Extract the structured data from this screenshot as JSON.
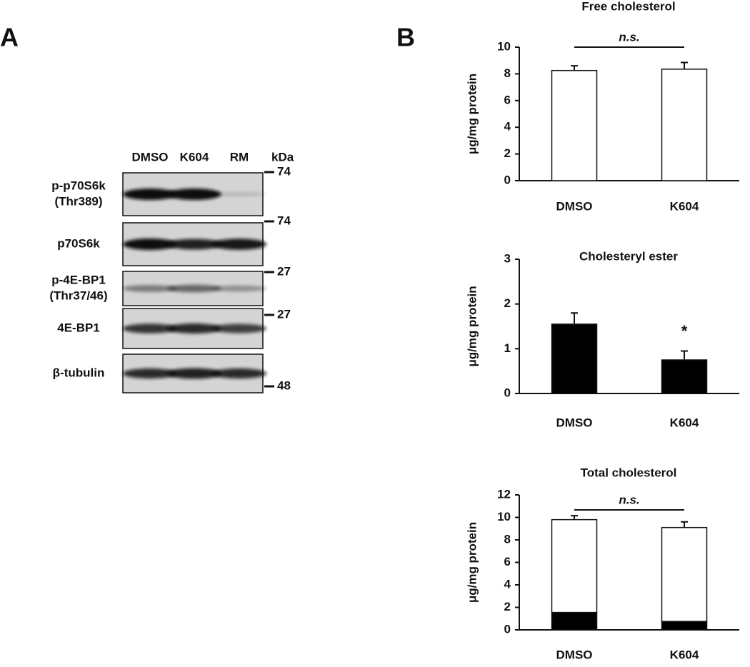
{
  "panel_labels": [
    "A",
    "B"
  ],
  "blot": {
    "lanes": [
      "DMSO",
      "K604",
      "RM"
    ],
    "unit": "kDa",
    "rows": [
      {
        "label": [
          "p-p70S6k",
          "(Thr389)"
        ],
        "marker": "74"
      },
      {
        "label": [
          "p70S6k"
        ],
        "marker": "74"
      },
      {
        "label": [
          "p-4E-BP1",
          "(Thr37/46)"
        ],
        "marker": "27"
      },
      {
        "label": [
          "4E-BP1"
        ],
        "marker": "27"
      },
      {
        "label": [
          "β-tubulin"
        ],
        "marker": "48"
      }
    ]
  },
  "chart_data": [
    {
      "type": "bar",
      "title": "Free cholesterol",
      "ylabel": "μg/mg protein",
      "categories": [
        "DMSO",
        "K604"
      ],
      "series": [
        {
          "color": "#ffffff",
          "values": [
            8.25,
            8.35
          ],
          "errors": [
            0.35,
            0.5
          ]
        }
      ],
      "ylim": [
        0,
        10
      ],
      "yticks": [
        0,
        2,
        4,
        6,
        8,
        10
      ],
      "annotation": "n.s."
    },
    {
      "type": "bar",
      "title": "Cholesteryl ester",
      "ylabel": "μg/mg protein",
      "categories": [
        "DMSO",
        "K604"
      ],
      "series": [
        {
          "color": "#000000",
          "values": [
            1.55,
            0.75
          ],
          "errors": [
            0.25,
            0.2
          ]
        }
      ],
      "ylim": [
        0,
        3
      ],
      "yticks": [
        0,
        1,
        2,
        3
      ],
      "annotation": "*"
    },
    {
      "type": "bar",
      "title": "Total cholesterol",
      "ylabel": "μg/mg protein",
      "categories": [
        "DMSO",
        "K604"
      ],
      "series": [
        {
          "color": "#000000",
          "values": [
            1.55,
            0.75
          ],
          "errors": [
            0.25,
            0.2
          ]
        },
        {
          "color": "#ffffff",
          "values": [
            8.25,
            8.35
          ],
          "errors": [
            0.35,
            0.5
          ]
        }
      ],
      "ylim": [
        0,
        12
      ],
      "yticks": [
        0,
        2,
        4,
        6,
        8,
        10,
        12
      ],
      "annotation": "n.s."
    }
  ]
}
